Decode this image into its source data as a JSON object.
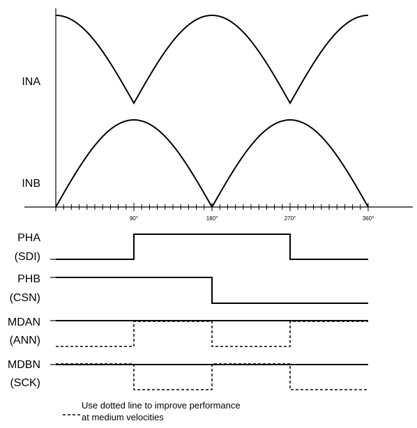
{
  "signals": {
    "ina": "INA",
    "inb": "INB",
    "pha": [
      "PHA",
      "(SDI)"
    ],
    "phb": [
      "PHB",
      "(CSN)"
    ],
    "mdan": [
      "MDAN",
      "(ANN)"
    ],
    "mdbn": [
      "MDBN",
      "(SCK)"
    ]
  },
  "angle_ticks": [
    "90°",
    "180°",
    "270°",
    "360°"
  ],
  "legend": {
    "line1": "Use dotted line to improve performance",
    "line2": "at medium velocities"
  }
}
